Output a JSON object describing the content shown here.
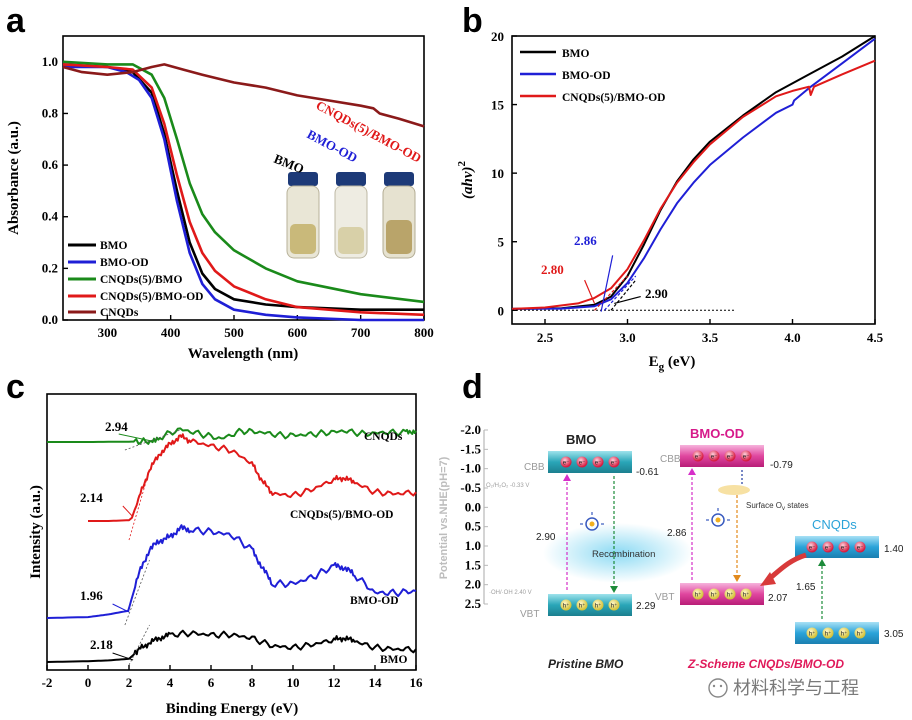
{
  "panel_labels": {
    "a": "a",
    "b": "b",
    "c": "c",
    "d": "d"
  },
  "chart_data": [
    {
      "panel": "a",
      "type": "line",
      "xlabel": "Wavelength (nm)",
      "ylabel": "Absorbance (a.u.)",
      "xlim": [
        230,
        800
      ],
      "ylim": [
        0,
        1.1
      ],
      "xticks": [
        300,
        400,
        500,
        600,
        700,
        800
      ],
      "yticks": [
        0.0,
        0.2,
        0.4,
        0.6,
        0.8,
        1.0
      ],
      "grid": false,
      "legend_position": "bottom-left",
      "series": [
        {
          "name": "BMO",
          "color": "#000000",
          "x": [
            230,
            300,
            340,
            370,
            390,
            410,
            430,
            450,
            470,
            500,
            550,
            600,
            700,
            800
          ],
          "y": [
            0.99,
            0.98,
            0.96,
            0.88,
            0.72,
            0.5,
            0.3,
            0.18,
            0.12,
            0.08,
            0.06,
            0.05,
            0.04,
            0.04
          ]
        },
        {
          "name": "BMO-OD",
          "color": "#1f1fd6",
          "x": [
            230,
            300,
            330,
            350,
            370,
            390,
            410,
            430,
            450,
            470,
            500,
            550,
            600,
            700,
            800
          ],
          "y": [
            0.98,
            0.98,
            0.96,
            0.93,
            0.86,
            0.7,
            0.46,
            0.26,
            0.14,
            0.08,
            0.04,
            0.02,
            0.01,
            0.0,
            0.0
          ]
        },
        {
          "name": "CNQDs(5)/BMO",
          "color": "#1a8a1a",
          "x": [
            230,
            300,
            340,
            370,
            390,
            410,
            430,
            450,
            470,
            500,
            550,
            600,
            700,
            800
          ],
          "y": [
            1.0,
            0.99,
            0.99,
            0.95,
            0.86,
            0.7,
            0.53,
            0.41,
            0.34,
            0.27,
            0.2,
            0.15,
            0.1,
            0.07
          ]
        },
        {
          "name": "CNQDs(5)/BMO-OD",
          "color": "#e01919",
          "x": [
            230,
            300,
            340,
            370,
            390,
            410,
            430,
            450,
            470,
            500,
            550,
            600,
            700,
            800
          ],
          "y": [
            0.99,
            0.98,
            0.97,
            0.9,
            0.76,
            0.56,
            0.38,
            0.26,
            0.19,
            0.13,
            0.08,
            0.05,
            0.03,
            0.02
          ]
        },
        {
          "name": "CNQDs",
          "color": "#8b1a1a",
          "x": [
            230,
            260,
            300,
            340,
            370,
            390,
            420,
            450,
            500,
            550,
            600,
            650,
            700,
            720,
            730,
            760,
            800
          ],
          "y": [
            0.98,
            0.96,
            0.95,
            0.96,
            0.98,
            0.99,
            0.97,
            0.95,
            0.92,
            0.9,
            0.87,
            0.85,
            0.83,
            0.82,
            0.8,
            0.78,
            0.75
          ]
        }
      ],
      "annotations": {
        "bmo": "BMO",
        "bmo_od": "BMO-OD",
        "cnqds_bmo_od": "CNQDs(5)/BMO-OD"
      }
    },
    {
      "panel": "b",
      "type": "line",
      "xlabel": "E",
      "xlabel_sub": "g",
      "xlabel_unit": " (eV)",
      "ylabel": "(ahν)",
      "ylabel_sup": "2",
      "xlim": [
        2.3,
        4.5
      ],
      "ylim": [
        -1,
        20
      ],
      "xticks": [
        2.5,
        3.0,
        3.5,
        4.0,
        4.5
      ],
      "yticks": [
        0,
        5,
        10,
        15,
        20
      ],
      "grid": false,
      "legend_position": "top-left",
      "series": [
        {
          "name": "BMO",
          "color": "#000000",
          "x": [
            2.3,
            2.6,
            2.8,
            2.9,
            3.0,
            3.1,
            3.2,
            3.3,
            3.4,
            3.5,
            3.7,
            3.9,
            4.1,
            4.3,
            4.5
          ],
          "y": [
            0.1,
            0.15,
            0.4,
            1.0,
            2.5,
            4.8,
            7.3,
            9.4,
            11.0,
            12.3,
            14.2,
            15.9,
            17.2,
            18.5,
            20.0
          ]
        },
        {
          "name": "BMO-OD",
          "color": "#1f1fd6",
          "x": [
            2.3,
            2.6,
            2.8,
            2.9,
            3.0,
            3.1,
            3.2,
            3.3,
            3.4,
            3.5,
            3.7,
            3.9,
            4.0,
            4.01,
            4.1,
            4.3,
            4.5
          ],
          "y": [
            0.1,
            0.12,
            0.3,
            0.8,
            2.0,
            3.8,
            5.9,
            7.8,
            9.3,
            10.6,
            12.6,
            14.4,
            15.0,
            15.3,
            16.2,
            18.0,
            19.8
          ]
        },
        {
          "name": "CNQDs(5)/BMO-OD",
          "color": "#e01919",
          "x": [
            2.3,
            2.5,
            2.7,
            2.8,
            2.9,
            3.0,
            3.1,
            3.2,
            3.3,
            3.4,
            3.5,
            3.7,
            3.9,
            4.0,
            4.1,
            4.11,
            4.13,
            4.3,
            4.5
          ],
          "y": [
            0.1,
            0.2,
            0.5,
            0.9,
            1.6,
            3.0,
            5.1,
            7.4,
            9.3,
            10.8,
            12.1,
            14.1,
            15.6,
            16.0,
            16.3,
            15.7,
            16.3,
            17.2,
            18.2
          ]
        }
      ],
      "annotations": {
        "v1": "2.86",
        "v2": "2.80",
        "v3": "2.90"
      }
    },
    {
      "panel": "c",
      "type": "line",
      "xlabel": "Binding  Energy (eV)",
      "ylabel": "Intensity (a.u.)",
      "xlim": [
        -2,
        16
      ],
      "xticks": [
        -2,
        0,
        2,
        4,
        6,
        8,
        10,
        12,
        14,
        16
      ],
      "grid": false,
      "series": [
        {
          "name": "CNQDs",
          "color": "#1a8a1a",
          "x": [
            -2,
            0,
            2,
            2.94,
            3.5,
            4.5,
            5.5,
            6.5,
            7.5,
            8.5,
            9.5,
            10.5,
            11.5,
            12.5,
            13.5,
            14.5,
            15.5,
            16
          ],
          "y": [
            0.0,
            0.0,
            0.02,
            0.05,
            0.3,
            0.8,
            0.5,
            0.2,
            0.7,
            0.6,
            0.4,
            0.45,
            0.55,
            0.7,
            0.5,
            0.6,
            0.6,
            0.7
          ]
        },
        {
          "name": "CNQDs(5)/BMO-OD",
          "color": "#e01919",
          "x": [
            0,
            1,
            2,
            2.14,
            2.5,
            3,
            3.5,
            4,
            4.5,
            5,
            6,
            7,
            8,
            8.5,
            9,
            10,
            11,
            12,
            12.5,
            13,
            14,
            15,
            16
          ],
          "y": [
            0.0,
            0.0,
            0.05,
            0.2,
            1.5,
            3.2,
            4.2,
            4.8,
            5.3,
            5.0,
            4.7,
            4.4,
            3.6,
            2.5,
            1.7,
            1.6,
            2.0,
            2.6,
            2.7,
            2.4,
            1.8,
            1.7,
            1.8
          ]
        },
        {
          "name": "BMO-OD",
          "color": "#1f1fd6",
          "x": [
            -2,
            0,
            1,
            1.96,
            2.5,
            3,
            3.5,
            4,
            4.5,
            5,
            6,
            7,
            8,
            8.5,
            9,
            10,
            11,
            12,
            12.5,
            13,
            14,
            15,
            16
          ],
          "y": [
            0.0,
            0.05,
            0.2,
            0.4,
            2.5,
            3.8,
            4.3,
            4.5,
            5.0,
            4.9,
            4.8,
            4.6,
            3.8,
            2.8,
            1.9,
            1.9,
            2.3,
            2.9,
            2.8,
            2.4,
            1.4,
            1.4,
            1.5
          ]
        },
        {
          "name": "BMO",
          "color": "#000000",
          "x": [
            -2,
            0,
            1,
            2,
            2.18,
            2.5,
            3,
            3.5,
            4,
            5,
            6,
            7,
            8,
            9,
            10,
            11,
            12,
            12.5,
            13,
            14,
            15,
            16
          ],
          "y": [
            0.0,
            0.05,
            0.1,
            0.2,
            0.4,
            0.8,
            1.2,
            1.5,
            1.7,
            1.8,
            1.7,
            1.7,
            1.5,
            1.0,
            0.9,
            1.1,
            1.4,
            1.5,
            1.3,
            0.9,
            0.8,
            0.8
          ]
        }
      ],
      "series_offsets": [
        4.7,
        2.75,
        1.25,
        0.0
      ],
      "annotations": {
        "v1": "2.94",
        "v2": "2.14",
        "v3": "1.96",
        "v4": "2.18"
      }
    }
  ],
  "diagram": {
    "axis_label": "Potential vs.NHE(pH=7)",
    "axis_ticks": [
      "-2.0",
      "-1.5",
      "-1.0",
      "-0.5",
      "0.0",
      "0.5",
      "1.0",
      "1.5",
      "2.0",
      "2.5"
    ],
    "bmo_title": "BMO",
    "bmo_od_title": "BMO-OD",
    "cnqds_title": "CNQDs",
    "cbb": "CBB",
    "vbt": "VBT",
    "bmo_cb": "-0.61",
    "bmo_vb": "2.29",
    "bmo_gap": "2.90",
    "bmo_od_cb": "-0.79",
    "bmo_od_vb": "2.07",
    "bmo_od_gap": "2.86",
    "cnqds_cb": "1.40",
    "cnqds_vb": "3.05",
    "cnqds_gap": "1.65",
    "o2_label": "O₂/H₂O₂ -0.33 V",
    "oh_label": "·OH/·OH 2.40 V",
    "recombination": "Recombination",
    "surface_states": "Surface O",
    "surface_states_sub": "v",
    "surface_states_tail": " states",
    "electron": "e⁻",
    "hole": "h⁺",
    "caption_left": "Pristine BMO",
    "caption_right": "Z-Scheme CNQDs/BMO-OD",
    "watermark": "材料科学与工程"
  },
  "colors": {
    "black": "#000000",
    "blue": "#1f1fd6",
    "green": "#1a8a1a",
    "red": "#e01919",
    "darkred": "#8b1a1a",
    "pink": "#d6198a",
    "teal": "#2aa6b8"
  }
}
